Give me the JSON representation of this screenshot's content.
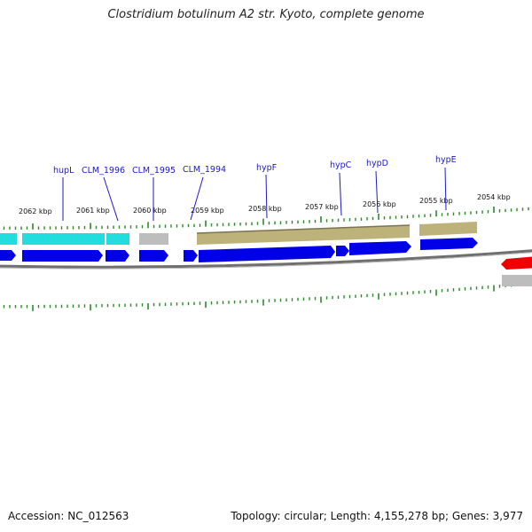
{
  "title": "Clostridium botulinum A2 str. Kyoto, complete genome",
  "footer": {
    "accession": "Accession: NC_012563",
    "info": "Topology: circular; Length: 4,155,278 bp; Genes: 3,977"
  },
  "colors": {
    "blue_gene": "#0000e6",
    "cyan_gene": "#22dddd",
    "gray_gene": "#bdbdbd",
    "olive_gene": "#bcb27a",
    "red_gene": "#ee0000",
    "tick_green": "#2a8a2a",
    "backbone": "#777777"
  },
  "scale_labels": [
    {
      "text": "2062 kbp"
    },
    {
      "text": "2061 kbp"
    },
    {
      "text": "2060 kbp"
    },
    {
      "text": "2059 kbp"
    },
    {
      "text": "2058 kbp"
    },
    {
      "text": "2057 kbp"
    },
    {
      "text": "2056 kbp"
    },
    {
      "text": "2055 kbp"
    },
    {
      "text": "2054 kbp"
    }
  ],
  "gene_labels": [
    {
      "text": "hupL"
    },
    {
      "text": "CLM_1996"
    },
    {
      "text": "CLM_1995"
    },
    {
      "text": "CLM_1994"
    },
    {
      "text": "hypF"
    },
    {
      "text": "hypC"
    },
    {
      "text": "hypD"
    },
    {
      "text": "hypE"
    }
  ]
}
